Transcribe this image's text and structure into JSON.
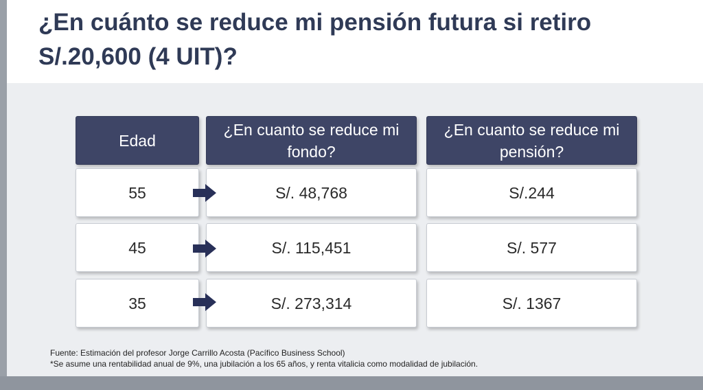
{
  "title": "¿En cuánto se reduce mi pensión futura si retiro S/.20,600 (4 UIT)?",
  "table": {
    "headers": [
      "Edad",
      "¿En cuanto se reduce mi fondo?",
      "¿En cuanto se reduce mi pensión?"
    ],
    "rows": [
      {
        "edad": "55",
        "fondo": "S/. 48,768",
        "pension": "S/.244"
      },
      {
        "edad": "45",
        "fondo": "S/. 115,451",
        "pension": "S/. 577"
      },
      {
        "edad": "35",
        "fondo": "S/. 273,314",
        "pension": "S/. 1367"
      }
    ]
  },
  "icons": {
    "row_arrow": "right-arrow-icon"
  },
  "colors": {
    "header_bg": "#3e4566",
    "arrow": "#283058",
    "title": "#2f3a56"
  },
  "footnotes": {
    "source": "Fuente: Estimación del profesor Jorge Carrillo Acosta (Pacífico Business School)",
    "assumption": "*Se asume una rentabilidad anual de 9%, una jubilación a los 65 años, y renta vitalicia como modalidad de jubilación."
  }
}
